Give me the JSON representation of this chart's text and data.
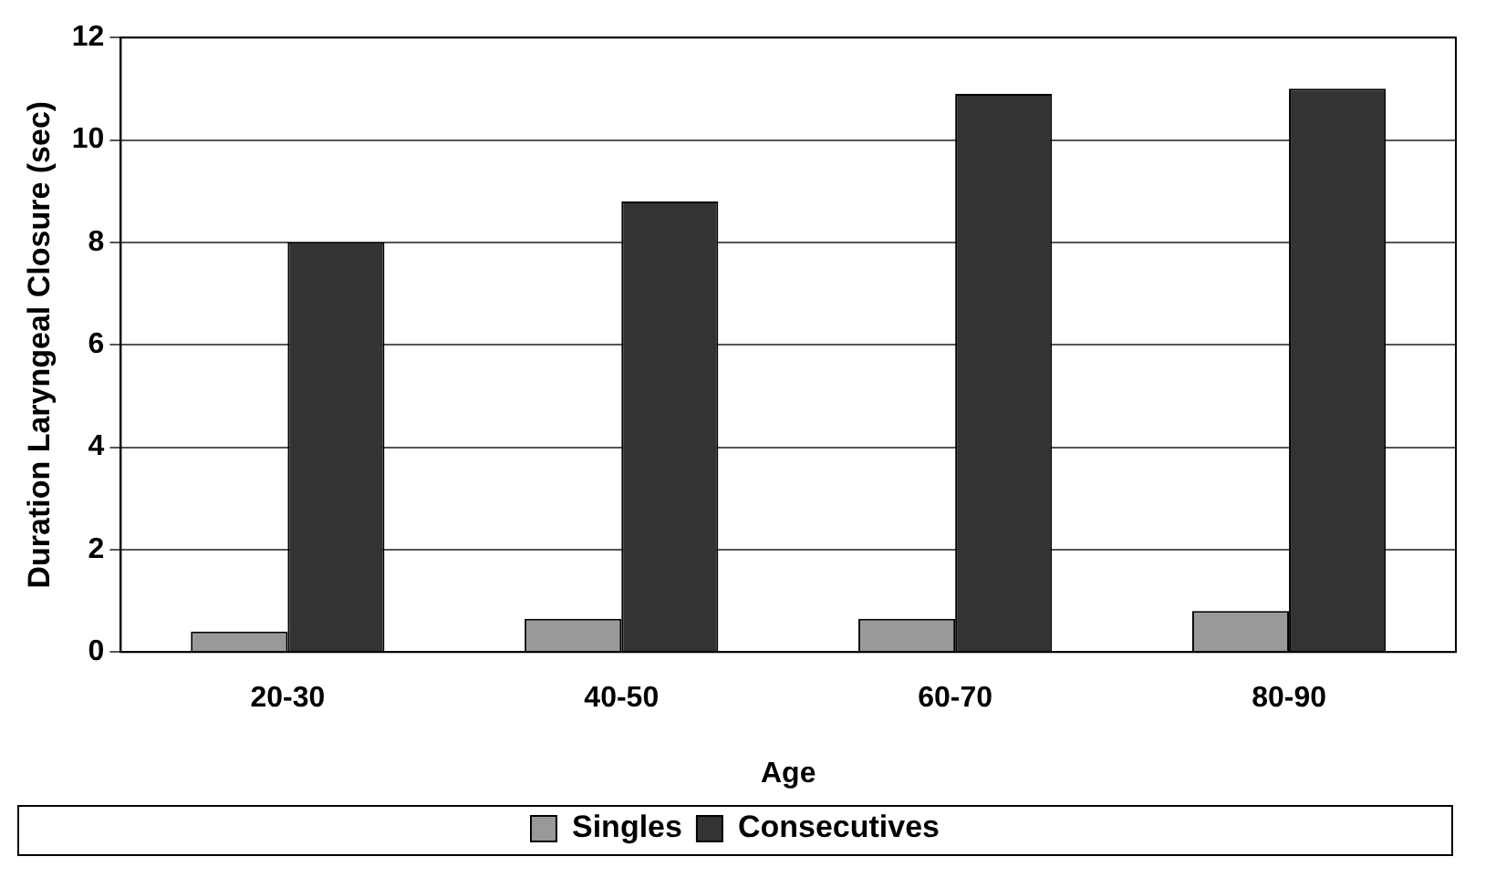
{
  "chart_data": {
    "type": "bar",
    "xlabel": "Age",
    "ylabel": "Duration Laryngeal Closure (sec)",
    "categories": [
      "20-30",
      "40-50",
      "60-70",
      "80-90"
    ],
    "series": [
      {
        "name": "Singles",
        "color": "#999999",
        "values": [
          0.4,
          0.65,
          0.65,
          0.8
        ]
      },
      {
        "name": "Consecutives",
        "color": "#333333",
        "values": [
          8.0,
          8.8,
          10.9,
          11.0
        ]
      }
    ],
    "ylim": [
      0,
      12
    ],
    "yticks": [
      0,
      2,
      4,
      6,
      8,
      10,
      12
    ],
    "grid": "y",
    "legend": "bottom"
  }
}
